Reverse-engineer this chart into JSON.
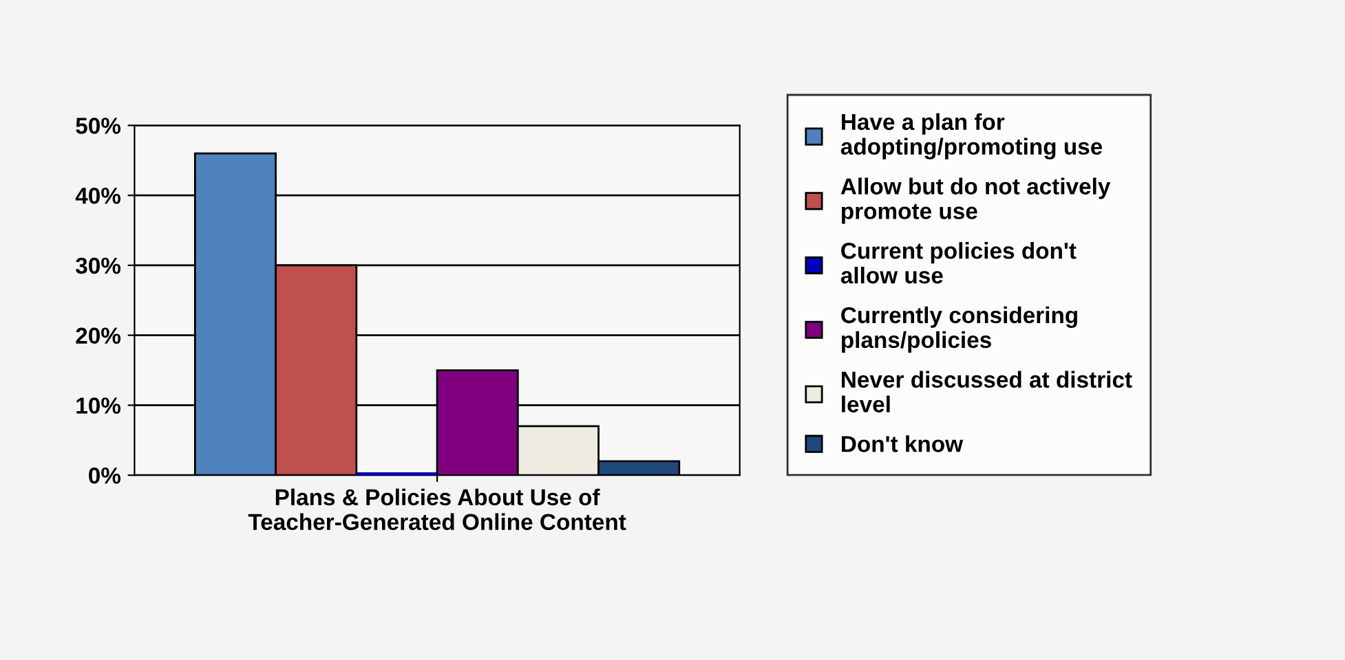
{
  "chart_data": {
    "type": "bar",
    "categories": [
      "Plans & Policies About Use of\nTeacher-Generated Online Content"
    ],
    "series": [
      {
        "name": "Have a plan for\nadopting/promoting use",
        "color": "#4f81bd",
        "values": [
          46
        ]
      },
      {
        "name": "Allow but do not actively\npromote use",
        "color": "#c0504d",
        "values": [
          30
        ]
      },
      {
        "name": "Current policies don't\nallow use",
        "color": "#0000c0",
        "values": [
          0
        ]
      },
      {
        "name": "Currently considering\nplans/policies",
        "color": "#800080",
        "values": [
          15
        ]
      },
      {
        "name": "Never discussed at district\nlevel",
        "color": "#eeece1",
        "values": [
          7
        ]
      },
      {
        "name": "Don't know",
        "color": "#1f497d",
        "values": [
          2
        ]
      }
    ],
    "ylim": [
      0,
      50
    ],
    "yticks": [
      {
        "value": 0,
        "label": "0%"
      },
      {
        "value": 10,
        "label": "10%"
      },
      {
        "value": 20,
        "label": "20%"
      },
      {
        "value": 30,
        "label": "30%"
      },
      {
        "value": 40,
        "label": "40%"
      },
      {
        "value": 50,
        "label": "50%"
      }
    ],
    "grid": "y",
    "legend": "right"
  }
}
